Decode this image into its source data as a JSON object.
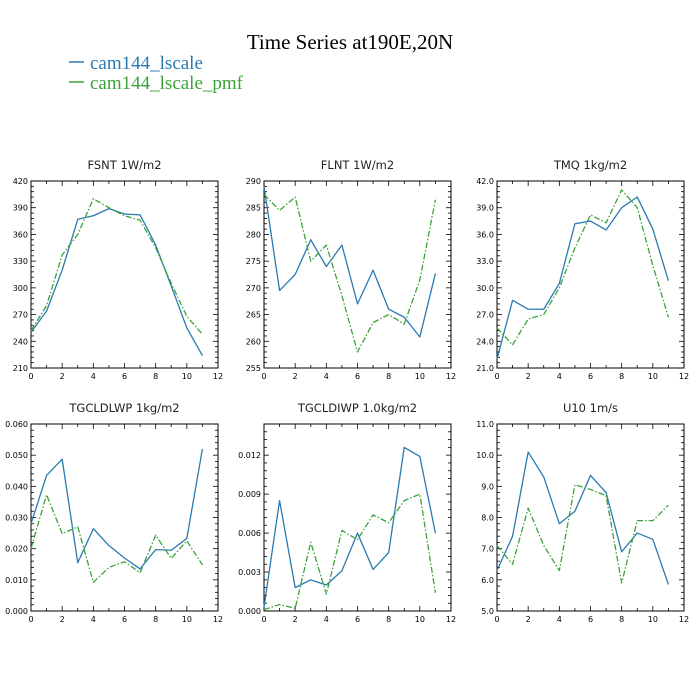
{
  "figure": {
    "title": "Time Series at190E,20N",
    "legend": [
      {
        "label": "cam144_lscale",
        "color": "#2a7ab0",
        "style": "solid"
      },
      {
        "label": "cam144_lscale_pmf",
        "color": "#3aa33a",
        "style": "dashdot"
      }
    ]
  },
  "chart_data": [
    {
      "type": "line",
      "title": "FSNT   1W/m2",
      "x": [
        0,
        1,
        2,
        3,
        4,
        5,
        6,
        7,
        8,
        9,
        10,
        11
      ],
      "xlim": [
        0,
        12
      ],
      "xticks": [
        "0",
        "2",
        "4",
        "6",
        "8",
        "10",
        "12"
      ],
      "ylim": [
        210,
        420
      ],
      "yticks": [
        "210",
        "240",
        "270",
        "300",
        "330",
        "360",
        "390",
        "420"
      ],
      "series": [
        {
          "name": "cam144_lscale",
          "values": [
            250,
            274,
            320,
            377,
            381,
            389,
            383,
            382,
            348,
            302,
            255,
            224
          ]
        },
        {
          "name": "cam144_lscale_pmf",
          "values": [
            252,
            280,
            337,
            360,
            400,
            390,
            381,
            376,
            345,
            305,
            268,
            248
          ]
        }
      ]
    },
    {
      "type": "line",
      "title": "FLNT   1W/m2",
      "x": [
        0,
        1,
        2,
        3,
        4,
        5,
        6,
        7,
        8,
        9,
        10,
        11
      ],
      "xlim": [
        0,
        12
      ],
      "xticks": [
        "0",
        "2",
        "4",
        "6",
        "8",
        "10",
        "12"
      ],
      "ylim": [
        255,
        290
      ],
      "yticks": [
        "255",
        "260",
        "265",
        "270",
        "275",
        "280",
        "285",
        "290"
      ],
      "series": [
        {
          "name": "cam144_lscale",
          "values": [
            289,
            269.5,
            272.5,
            279,
            274,
            278,
            267,
            273.3,
            266,
            264.5,
            260.8,
            272.7
          ]
        },
        {
          "name": "cam144_lscale_pmf",
          "values": [
            287.5,
            284.5,
            287,
            275,
            278,
            268.5,
            258,
            263.5,
            265,
            263.2,
            271.5,
            286.5
          ]
        }
      ]
    },
    {
      "type": "line",
      "title": "TMQ   1kg/m2",
      "x": [
        0,
        1,
        2,
        3,
        4,
        5,
        6,
        7,
        8,
        9,
        10,
        11
      ],
      "xlim": [
        0,
        12
      ],
      "xticks": [
        "0",
        "2",
        "4",
        "6",
        "8",
        "10",
        "12"
      ],
      "ylim": [
        21.0,
        42.0
      ],
      "yticks": [
        "21.0",
        "24.0",
        "27.0",
        "30.0",
        "33.0",
        "36.0",
        "39.0",
        "42.0"
      ],
      "series": [
        {
          "name": "cam144_lscale",
          "values": [
            22.0,
            28.6,
            27.6,
            27.6,
            30.5,
            37.2,
            37.5,
            36.5,
            39.0,
            40.2,
            36.6,
            30.8
          ]
        },
        {
          "name": "cam144_lscale_pmf",
          "values": [
            25.5,
            23.6,
            26.5,
            27.0,
            30.0,
            34.5,
            38.2,
            37.3,
            41.0,
            39.0,
            32.5,
            26.7
          ]
        }
      ]
    },
    {
      "type": "line",
      "title": "TGCLDLWP   1kg/m2",
      "x": [
        0,
        1,
        2,
        3,
        4,
        5,
        6,
        7,
        8,
        9,
        10,
        11
      ],
      "xlim": [
        0,
        12
      ],
      "xticks": [
        "0",
        "2",
        "4",
        "6",
        "8",
        "10",
        "12"
      ],
      "ylim": [
        0.0,
        0.06
      ],
      "yticks": [
        "0.000",
        "0.010",
        "0.020",
        "0.030",
        "0.040",
        "0.050",
        "0.060"
      ],
      "series": [
        {
          "name": "cam144_lscale",
          "values": [
            0.028,
            0.0435,
            0.0487,
            0.0155,
            0.0264,
            0.021,
            0.017,
            0.0135,
            0.0197,
            0.0195,
            0.0233,
            0.052
          ]
        },
        {
          "name": "cam144_lscale_pmf",
          "values": [
            0.02,
            0.0373,
            0.0248,
            0.027,
            0.0092,
            0.014,
            0.0158,
            0.0123,
            0.0243,
            0.0169,
            0.0225,
            0.0148
          ]
        }
      ]
    },
    {
      "type": "line",
      "title": "TGCLDIWP   1.0kg/m2",
      "x": [
        0,
        1,
        2,
        3,
        4,
        5,
        6,
        7,
        8,
        9,
        10,
        11
      ],
      "xlim": [
        0,
        12
      ],
      "xticks": [
        "0",
        "2",
        "4",
        "6",
        "8",
        "10",
        "12"
      ],
      "ylim": [
        0.0,
        0.0144
      ],
      "yticks": [
        "0.000",
        "0.003",
        "0.006",
        "0.009",
        "0.012"
      ],
      "series": [
        {
          "name": "cam144_lscale",
          "values": [
            0.0003,
            0.0085,
            0.0018,
            0.0024,
            0.002,
            0.0031,
            0.006,
            0.0032,
            0.0045,
            0.0126,
            0.0119,
            0.006
          ]
        },
        {
          "name": "cam144_lscale_pmf",
          "values": [
            0.0001,
            0.0005,
            0.0002,
            0.0053,
            0.0013,
            0.0062,
            0.0055,
            0.0074,
            0.0068,
            0.0085,
            0.009,
            0.0014
          ]
        }
      ]
    },
    {
      "type": "line",
      "title": "U10   1m/s",
      "x": [
        0,
        1,
        2,
        3,
        4,
        5,
        6,
        7,
        8,
        9,
        10,
        11
      ],
      "xlim": [
        0,
        12
      ],
      "xticks": [
        "0",
        "2",
        "4",
        "6",
        "8",
        "10",
        "12"
      ],
      "ylim": [
        5.0,
        11.0
      ],
      "yticks": [
        "5.0",
        "6.0",
        "7.0",
        "8.0",
        "9.0",
        "10.0",
        "11.0"
      ],
      "series": [
        {
          "name": "cam144_lscale",
          "values": [
            6.3,
            7.4,
            10.1,
            9.3,
            7.8,
            8.2,
            9.35,
            8.8,
            6.9,
            7.5,
            7.3,
            5.85
          ]
        },
        {
          "name": "cam144_lscale_pmf",
          "values": [
            7.1,
            6.5,
            8.3,
            7.1,
            6.3,
            9.05,
            8.9,
            8.7,
            5.9,
            7.9,
            7.9,
            8.4
          ]
        }
      ]
    }
  ]
}
